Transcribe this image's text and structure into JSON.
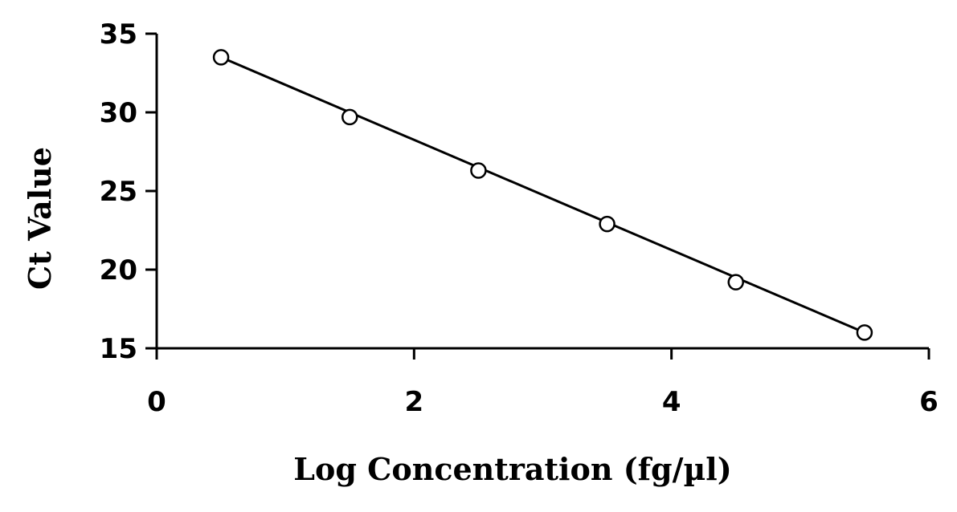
{
  "chart_data": {
    "type": "scatter",
    "title": "",
    "xlabel": "Log Concentration (fg/µl)",
    "ylabel": "Ct Value",
    "xlim": [
      0,
      6
    ],
    "ylim": [
      15,
      35
    ],
    "x_ticks": [
      0,
      2,
      4,
      6
    ],
    "y_ticks": [
      15,
      20,
      25,
      30,
      35
    ],
    "x_tick_labels": [
      "0",
      "2",
      "4",
      "6"
    ],
    "y_tick_labels": [
      "15",
      "20",
      "25",
      "30",
      "35"
    ],
    "grid": false,
    "legend": "none",
    "series": [
      {
        "marker": "open-circle",
        "x": [
          0.5,
          1.5,
          2.5,
          3.5,
          4.5,
          5.5
        ],
        "y": [
          33.5,
          29.7,
          26.3,
          22.9,
          19.2,
          16.0
        ]
      }
    ],
    "trendline": {
      "type": "linear",
      "x": [
        0.5,
        5.5
      ],
      "y": [
        33.5,
        16.0
      ]
    },
    "colors": {
      "axis": "#000000",
      "marker": "#000000",
      "line": "#000000"
    }
  }
}
